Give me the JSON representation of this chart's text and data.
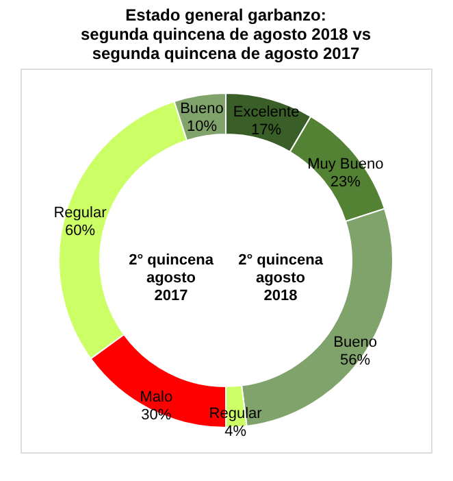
{
  "chart_data": {
    "type": "donut",
    "title": [
      "Estado general garbanzo:",
      "segunda quincena de agosto 2018 vs",
      "segunda quincena de agosto 2017"
    ],
    "categories": [
      "Excelente",
      "Muy Bueno",
      "Bueno",
      "Regular",
      "Malo",
      "Regular",
      "Bueno"
    ],
    "values": [
      17,
      23,
      56,
      4,
      30,
      60,
      10
    ],
    "value_labels": [
      "17%",
      "23%",
      "56%",
      "4%",
      "30%",
      "60%",
      "10%"
    ],
    "colors": [
      "#3a5e27",
      "#548235",
      "#80a26b",
      "#ccff66",
      "#ff0000",
      "#ccff66",
      "#80a26b"
    ],
    "annotations": [
      "2° quincena agosto 2018",
      "2° quincena agosto 2017"
    ],
    "legend": false
  }
}
